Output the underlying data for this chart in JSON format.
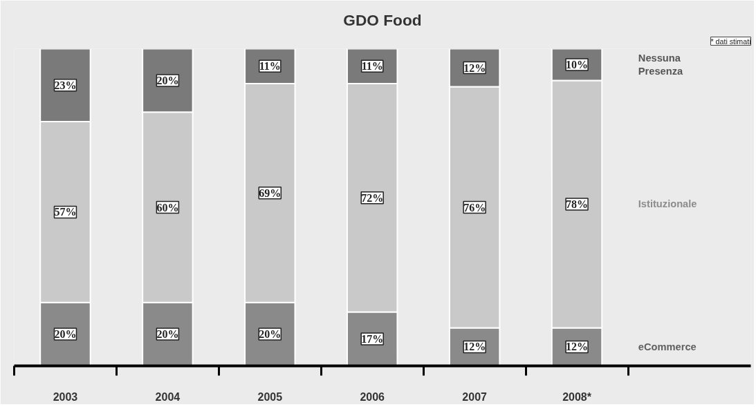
{
  "chart_data": {
    "type": "bar",
    "stacked": true,
    "title": "GDO Food",
    "categories": [
      "2003",
      "2004",
      "2005",
      "2006",
      "2007",
      "2008*"
    ],
    "series": [
      {
        "name": "eCommerce",
        "color": "#8a8a8a",
        "values": [
          20,
          20,
          20,
          17,
          12,
          12
        ],
        "value_labels": [
          "20%",
          "20%",
          "20%",
          "17%",
          "12%",
          "12%"
        ]
      },
      {
        "name": "Istituzionale",
        "color": "#c9c9c9",
        "values": [
          57,
          60,
          69,
          72,
          76,
          78
        ],
        "value_labels": [
          "57%",
          "60%",
          "69%",
          "72%",
          "76%",
          "78%"
        ]
      },
      {
        "name": "Nessuna Presenza",
        "color": "#7a7a7a",
        "values": [
          23,
          20,
          11,
          11,
          12,
          10
        ],
        "value_labels": [
          "23%",
          "20%",
          "11%",
          "11%",
          "12%",
          "10%"
        ]
      }
    ],
    "ylim": [
      0,
      100
    ],
    "tick_labels": "x",
    "grid": false,
    "annotations": [
      "* dati stimati"
    ]
  }
}
